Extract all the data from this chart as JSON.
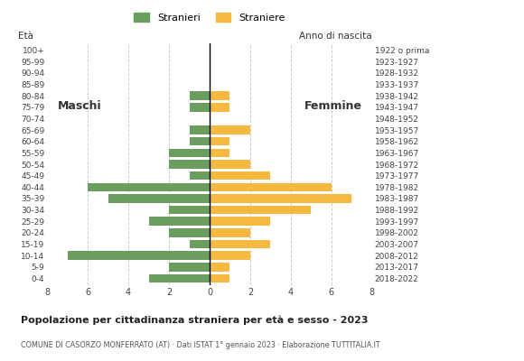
{
  "age_groups": [
    "0-4",
    "5-9",
    "10-14",
    "15-19",
    "20-24",
    "25-29",
    "30-34",
    "35-39",
    "40-44",
    "45-49",
    "50-54",
    "55-59",
    "60-64",
    "65-69",
    "70-74",
    "75-79",
    "80-84",
    "85-89",
    "90-94",
    "95-99",
    "100+"
  ],
  "birth_years": [
    "2018-2022",
    "2013-2017",
    "2008-2012",
    "2003-2007",
    "1998-2002",
    "1993-1997",
    "1988-1992",
    "1983-1987",
    "1978-1982",
    "1973-1977",
    "1968-1972",
    "1963-1967",
    "1958-1962",
    "1953-1957",
    "1948-1952",
    "1943-1947",
    "1938-1942",
    "1933-1937",
    "1928-1932",
    "1923-1927",
    "1922 o prima"
  ],
  "males": [
    3,
    2,
    7,
    1,
    2,
    3,
    2,
    5,
    6,
    1,
    2,
    2,
    1,
    1,
    0,
    1,
    1,
    0,
    0,
    0,
    0
  ],
  "females": [
    1,
    1,
    2,
    3,
    2,
    3,
    5,
    7,
    6,
    3,
    2,
    1,
    1,
    2,
    0,
    1,
    1,
    0,
    0,
    0,
    0
  ],
  "male_color": "#6a9e5e",
  "female_color": "#f5b942",
  "title": "Popolazione per cittadinanza straniera per età e sesso - 2023",
  "subtitle": "COMUNE DI CASORZO MONFERRATO (AT) · Dati ISTAT 1° gennaio 2023 · Elaborazione TUTTITALIA.IT",
  "legend_male": "Stranieri",
  "legend_female": "Straniere",
  "label_maschi": "Maschi",
  "label_femmine": "Femmine",
  "eta_label": "Età",
  "anno_nascita": "Anno di nascita",
  "xlim": 8,
  "bar_height": 0.75,
  "background_color": "#ffffff",
  "grid_color": "#cccccc"
}
